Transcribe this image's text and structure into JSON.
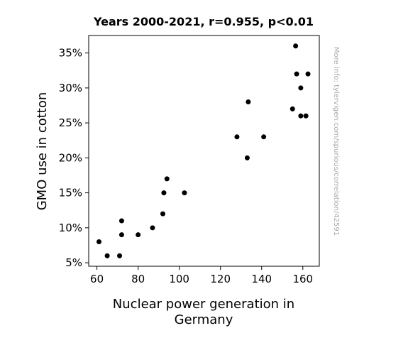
{
  "chart_data": {
    "type": "scatter",
    "title": "Years 2000-2021, r=0.955, p<0.01",
    "xlabel_lines": [
      "Nuclear power generation in",
      "Germany"
    ],
    "ylabel": "GMO use in cotton",
    "side_note": "More info: tylervigen.com/spurious/correlation/42591",
    "xlim": [
      56,
      168
    ],
    "ylim": [
      4.5,
      37.5
    ],
    "x_ticks": [
      60,
      80,
      100,
      120,
      140,
      160
    ],
    "x_tick_labels": [
      "60",
      "80",
      "100",
      "120",
      "140",
      "160"
    ],
    "y_ticks": [
      5,
      10,
      15,
      20,
      25,
      30,
      35
    ],
    "y_tick_labels": [
      "5%",
      "10%",
      "15%",
      "20%",
      "25%",
      "30%",
      "35%"
    ],
    "grid": false,
    "marker_color": "#000000",
    "points": [
      {
        "x": 61,
        "y": 8
      },
      {
        "x": 65,
        "y": 6
      },
      {
        "x": 71,
        "y": 6
      },
      {
        "x": 72,
        "y": 11
      },
      {
        "x": 72,
        "y": 9
      },
      {
        "x": 80,
        "y": 9
      },
      {
        "x": 87,
        "y": 10
      },
      {
        "x": 92,
        "y": 12
      },
      {
        "x": 92.5,
        "y": 15
      },
      {
        "x": 94,
        "y": 17
      },
      {
        "x": 102.5,
        "y": 15
      },
      {
        "x": 128,
        "y": 23
      },
      {
        "x": 133,
        "y": 20
      },
      {
        "x": 133.5,
        "y": 28
      },
      {
        "x": 141,
        "y": 23
      },
      {
        "x": 155,
        "y": 27
      },
      {
        "x": 156.5,
        "y": 36
      },
      {
        "x": 157,
        "y": 32
      },
      {
        "x": 159,
        "y": 30
      },
      {
        "x": 159,
        "y": 26
      },
      {
        "x": 161.5,
        "y": 26
      },
      {
        "x": 162.5,
        "y": 32
      }
    ]
  }
}
